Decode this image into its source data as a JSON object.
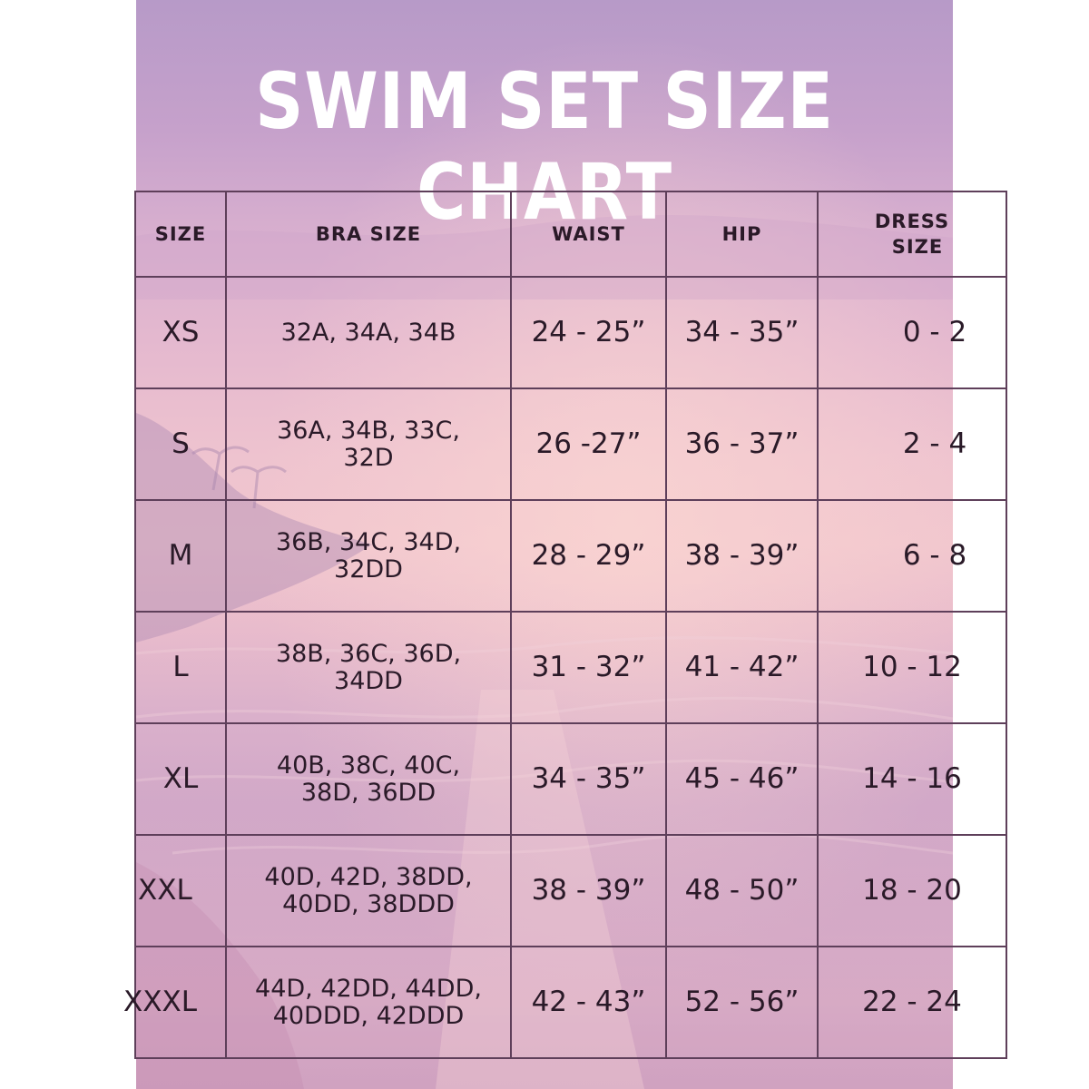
{
  "title": "SWIM SET SIZE CHART",
  "colors": {
    "background_top": "#b79ac8",
    "background_mid": "#f1c6ce",
    "grid_line": "#5e3f5a",
    "text": "#2a1a28",
    "title_text": "#ffffff"
  },
  "table": {
    "headers": {
      "size": "SIZE",
      "bra": "BRA SIZE",
      "waist": "WAIST",
      "hip": "HIP",
      "dress_line1": "DRESS",
      "dress_line2": "SIZE"
    },
    "rows": [
      {
        "size": "XS",
        "bra_line1": "32A, 34A, 34B",
        "bra_line2": "",
        "waist": "24 - 25”",
        "hip": "34 - 35”",
        "dress": "0 - 2"
      },
      {
        "size": "S",
        "bra_line1": "36A, 34B, 33C,",
        "bra_line2": "32D",
        "waist": "26 -27”",
        "hip": "36 - 37”",
        "dress": "2 - 4"
      },
      {
        "size": "M",
        "bra_line1": "36B, 34C, 34D,",
        "bra_line2": "32DD",
        "waist": "28 - 29”",
        "hip": "38 - 39”",
        "dress": "6 - 8"
      },
      {
        "size": "L",
        "bra_line1": "38B, 36C, 36D,",
        "bra_line2": "34DD",
        "waist": "31 - 32”",
        "hip": "41 - 42”",
        "dress": "10 - 12"
      },
      {
        "size": "XL",
        "bra_line1": "40B, 38C, 40C,",
        "bra_line2": "38D, 36DD",
        "waist": "34 - 35”",
        "hip": "45 - 46”",
        "dress": "14 - 16"
      },
      {
        "size": "XXL",
        "bra_line1": "40D, 42D, 38DD,",
        "bra_line2": "40DD, 38DDD",
        "waist": "38 - 39”",
        "hip": "48 - 50”",
        "dress": "18 - 20"
      },
      {
        "size": "XXXL",
        "bra_line1": "44D, 42DD, 44DD,",
        "bra_line2": "40DDD, 42DDD",
        "waist": "42 - 43”",
        "hip": "52 - 56”",
        "dress": "22 - 24"
      }
    ]
  }
}
